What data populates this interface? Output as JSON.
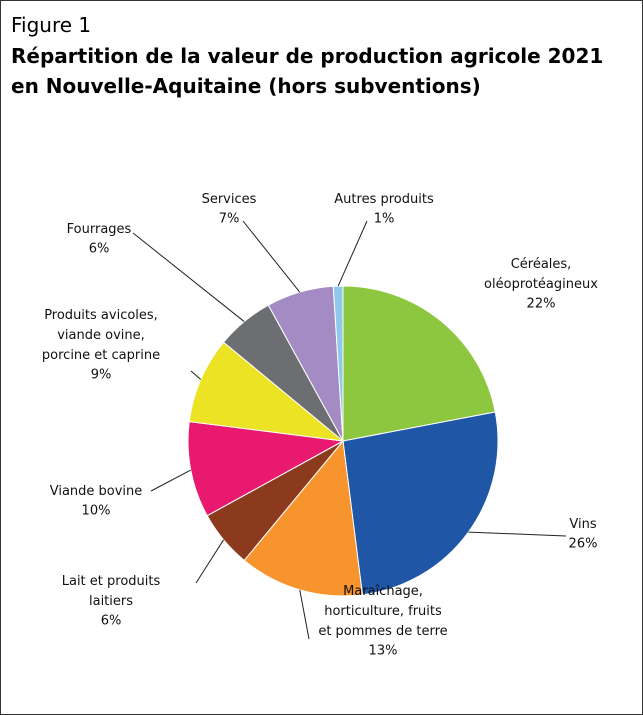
{
  "chart_data": {
    "type": "pie",
    "figure_label": "Figure 1",
    "title": "Répartition de la valeur de production agricole 2021\nen Nouvelle-Aquitaine (hors subventions)",
    "categories": [
      "Céréales,\noléoprotéagineux",
      "Vins",
      "Maraîchage,\nhorticulture, fruits\net pommes de terre",
      "Lait et produits\nlaitiers",
      "Viande bovine",
      "Produits avicoles,\nviande ovine,\nporcine et caprine",
      "Fourrages",
      "Services",
      "Autres produits"
    ],
    "values": [
      22,
      26,
      13,
      6,
      10,
      9,
      6,
      7,
      1
    ],
    "value_labels": [
      "22%",
      "26%",
      "13%",
      "6%",
      "10%",
      "9%",
      "6%",
      "7%",
      "1%"
    ],
    "colors": [
      "#8dc63f",
      "#1f56a5",
      "#f7942d",
      "#8b3a1e",
      "#e8196e",
      "#ece324",
      "#6d6e71",
      "#a58bc3",
      "#8ec9ea"
    ]
  }
}
